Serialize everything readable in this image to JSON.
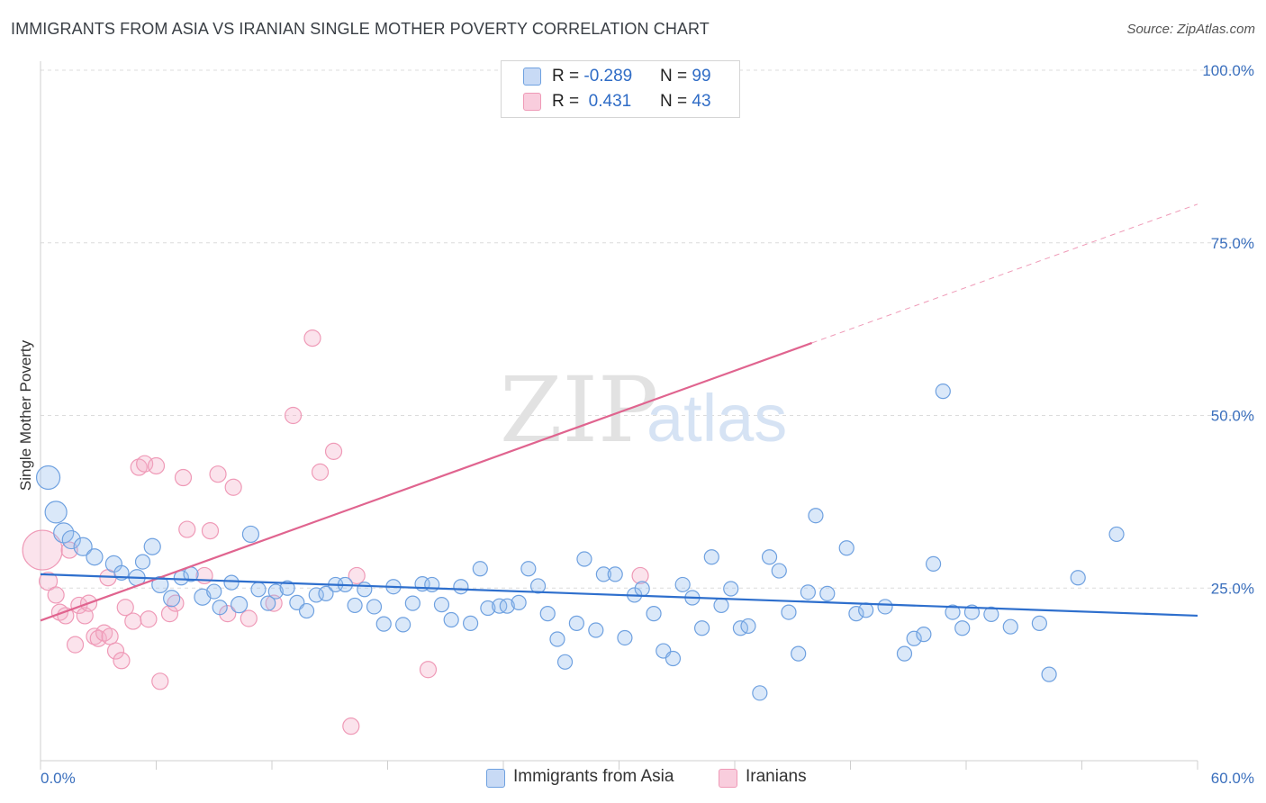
{
  "header": {
    "title": "IMMIGRANTS FROM ASIA VS IRANIAN SINGLE MOTHER POVERTY CORRELATION CHART",
    "source": "Source: ZipAtlas.com"
  },
  "watermark": {
    "zip": "ZIP",
    "atlas": "atlas"
  },
  "legend": {
    "row1": {
      "r_label": "R = ",
      "r_value": "-0.289",
      "n_label": "N = ",
      "n_value": "99"
    },
    "row2": {
      "r_label": "R = ",
      "r_value": " 0.431",
      "n_label": "N = ",
      "n_value": "43"
    }
  },
  "bottom_legend": {
    "series1": "Immigrants from Asia",
    "series2": "Iranians"
  },
  "chart_data": {
    "type": "scatter",
    "title": "IMMIGRANTS FROM ASIA VS IRANIAN SINGLE MOTHER POVERTY CORRELATION CHART",
    "xlabel": "",
    "ylabel": "Single Mother Poverty",
    "xlim": [
      0,
      60
    ],
    "ylim": [
      0,
      100
    ],
    "x_tick_labels": [
      "0.0%",
      "60.0%"
    ],
    "y_ticks": [
      25,
      50,
      75,
      100
    ],
    "y_tick_labels": [
      "25.0%",
      "50.0%",
      "75.0%",
      "100.0%"
    ],
    "grid": "horizontal dashed",
    "legend_position": "top-center",
    "colors": {
      "blue": "#6fa1e0",
      "blue_line": "#2e6fcd",
      "pink": "#ef9ab7",
      "pink_line": "#e0648f"
    },
    "series": [
      {
        "name": "Immigrants from Asia",
        "R": -0.289,
        "N": 99,
        "trend": {
          "x": [
            0,
            60
          ],
          "y": [
            27.0,
            21.0
          ]
        },
        "points": [
          [
            0.4,
            41,
            13
          ],
          [
            0.8,
            36,
            12
          ],
          [
            1.2,
            33,
            11
          ],
          [
            1.6,
            32,
            10
          ],
          [
            2.2,
            31,
            10
          ],
          [
            2.8,
            29.5,
            9
          ],
          [
            3.8,
            28.5,
            9
          ],
          [
            4.2,
            27.2,
            8
          ],
          [
            5.0,
            26.5,
            9
          ],
          [
            5.3,
            28.8,
            8
          ],
          [
            5.8,
            31,
            9
          ],
          [
            6.2,
            25.5,
            9
          ],
          [
            6.8,
            23.5,
            9
          ],
          [
            7.3,
            26.5,
            8
          ],
          [
            7.8,
            27,
            8
          ],
          [
            8.4,
            23.7,
            9
          ],
          [
            9.0,
            24.5,
            8
          ],
          [
            9.3,
            22.2,
            8
          ],
          [
            9.9,
            25.8,
            8
          ],
          [
            10.3,
            22.6,
            9
          ],
          [
            10.9,
            32.8,
            9
          ],
          [
            11.3,
            24.8,
            8
          ],
          [
            11.8,
            22.8,
            8
          ],
          [
            12.2,
            24.5,
            8
          ],
          [
            12.8,
            25,
            8
          ],
          [
            13.3,
            22.9,
            8
          ],
          [
            13.8,
            21.7,
            8
          ],
          [
            14.3,
            24,
            8
          ],
          [
            14.8,
            24.2,
            8
          ],
          [
            15.3,
            25.5,
            8
          ],
          [
            15.8,
            25.5,
            8
          ],
          [
            16.3,
            22.5,
            8
          ],
          [
            16.8,
            24.8,
            8
          ],
          [
            17.3,
            22.3,
            8
          ],
          [
            17.8,
            19.8,
            8
          ],
          [
            18.3,
            25.2,
            8
          ],
          [
            18.8,
            19.7,
            8
          ],
          [
            19.3,
            22.8,
            8
          ],
          [
            19.8,
            25.6,
            8
          ],
          [
            20.3,
            25.5,
            8
          ],
          [
            20.8,
            22.6,
            8
          ],
          [
            21.3,
            20.4,
            8
          ],
          [
            21.8,
            25.2,
            8
          ],
          [
            22.3,
            19.9,
            8
          ],
          [
            22.8,
            27.8,
            8
          ],
          [
            23.2,
            22.1,
            8
          ],
          [
            23.8,
            22.4,
            8
          ],
          [
            24.2,
            22.4,
            8
          ],
          [
            24.8,
            22.9,
            8
          ],
          [
            25.3,
            27.8,
            8
          ],
          [
            25.8,
            25.3,
            8
          ],
          [
            26.3,
            21.3,
            8
          ],
          [
            26.8,
            17.6,
            8
          ],
          [
            27.2,
            14.3,
            8
          ],
          [
            27.8,
            19.9,
            8
          ],
          [
            28.2,
            29.2,
            8
          ],
          [
            28.8,
            18.9,
            8
          ],
          [
            29.2,
            27,
            8
          ],
          [
            29.8,
            27,
            8
          ],
          [
            30.3,
            17.8,
            8
          ],
          [
            30.8,
            24,
            8
          ],
          [
            31.2,
            24.9,
            8
          ],
          [
            31.8,
            21.3,
            8
          ],
          [
            32.3,
            15.9,
            8
          ],
          [
            32.8,
            14.8,
            8
          ],
          [
            33.3,
            25.5,
            8
          ],
          [
            33.8,
            23.6,
            8
          ],
          [
            34.3,
            19.2,
            8
          ],
          [
            34.8,
            29.5,
            8
          ],
          [
            35.3,
            22.5,
            8
          ],
          [
            35.8,
            24.9,
            8
          ],
          [
            36.3,
            19.2,
            8
          ],
          [
            36.7,
            19.5,
            8
          ],
          [
            37.3,
            9.8,
            8
          ],
          [
            37.8,
            29.5,
            8
          ],
          [
            38.3,
            27.5,
            8
          ],
          [
            38.8,
            21.5,
            8
          ],
          [
            39.3,
            15.5,
            8
          ],
          [
            39.8,
            24.4,
            8
          ],
          [
            40.2,
            35.5,
            8
          ],
          [
            40.8,
            24.2,
            8
          ],
          [
            41.8,
            30.8,
            8
          ],
          [
            42.3,
            21.3,
            8
          ],
          [
            42.8,
            21.8,
            8
          ],
          [
            43.8,
            22.3,
            8
          ],
          [
            44.8,
            15.5,
            8
          ],
          [
            45.3,
            17.7,
            8
          ],
          [
            45.8,
            18.3,
            8
          ],
          [
            46.3,
            28.5,
            8
          ],
          [
            46.8,
            53.5,
            8
          ],
          [
            47.3,
            21.5,
            8
          ],
          [
            47.8,
            19.2,
            8
          ],
          [
            48.3,
            21.5,
            8
          ],
          [
            50.3,
            19.4,
            8
          ],
          [
            51.8,
            19.9,
            8
          ],
          [
            53.8,
            26.5,
            8
          ],
          [
            52.3,
            12.5,
            8
          ],
          [
            55.8,
            32.8,
            8
          ],
          [
            49.3,
            21.2,
            8
          ]
        ]
      },
      {
        "name": "Iranians",
        "R": 0.431,
        "N": 43,
        "trend": {
          "x": [
            0,
            40
          ],
          "y": [
            20.3,
            60.5
          ]
        },
        "trend_dashed": {
          "x": [
            40,
            60
          ],
          "y": [
            60.5,
            80.6
          ]
        },
        "points": [
          [
            0.1,
            30.5,
            22
          ],
          [
            0.4,
            26,
            10
          ],
          [
            0.8,
            24,
            9
          ],
          [
            1.0,
            21.5,
            9
          ],
          [
            1.3,
            21,
            9
          ],
          [
            1.5,
            30.5,
            9
          ],
          [
            1.8,
            16.8,
            9
          ],
          [
            2.0,
            22.5,
            9
          ],
          [
            2.3,
            21,
            9
          ],
          [
            2.5,
            22.8,
            9
          ],
          [
            2.8,
            18,
            9
          ],
          [
            3.0,
            17.7,
            9
          ],
          [
            3.3,
            18.5,
            9
          ],
          [
            3.6,
            18,
            9
          ],
          [
            3.9,
            15.9,
            9
          ],
          [
            4.2,
            14.5,
            9
          ],
          [
            4.8,
            20.2,
            9
          ],
          [
            5.1,
            42.5,
            9
          ],
          [
            5.4,
            43,
            9
          ],
          [
            5.6,
            20.5,
            9
          ],
          [
            6.2,
            11.5,
            9
          ],
          [
            6.7,
            21.3,
            9
          ],
          [
            7.0,
            22.8,
            9
          ],
          [
            7.4,
            41,
            9
          ],
          [
            7.6,
            33.5,
            9
          ],
          [
            8.5,
            26.8,
            9
          ],
          [
            8.8,
            33.3,
            9
          ],
          [
            9.2,
            41.5,
            9
          ],
          [
            9.7,
            21.3,
            9
          ],
          [
            10.0,
            39.6,
            9
          ],
          [
            10.8,
            20.6,
            9
          ],
          [
            12.1,
            22.8,
            9
          ],
          [
            13.1,
            50,
            9
          ],
          [
            14.1,
            61.2,
            9
          ],
          [
            14.5,
            41.8,
            9
          ],
          [
            15.2,
            44.8,
            9
          ],
          [
            16.1,
            5,
            9
          ],
          [
            16.4,
            26.8,
            9
          ],
          [
            20.1,
            13.2,
            9
          ],
          [
            31.1,
            26.8,
            9
          ],
          [
            4.4,
            22.2,
            9
          ],
          [
            6.0,
            42.7,
            9
          ],
          [
            3.5,
            26.5,
            9
          ]
        ]
      }
    ]
  }
}
